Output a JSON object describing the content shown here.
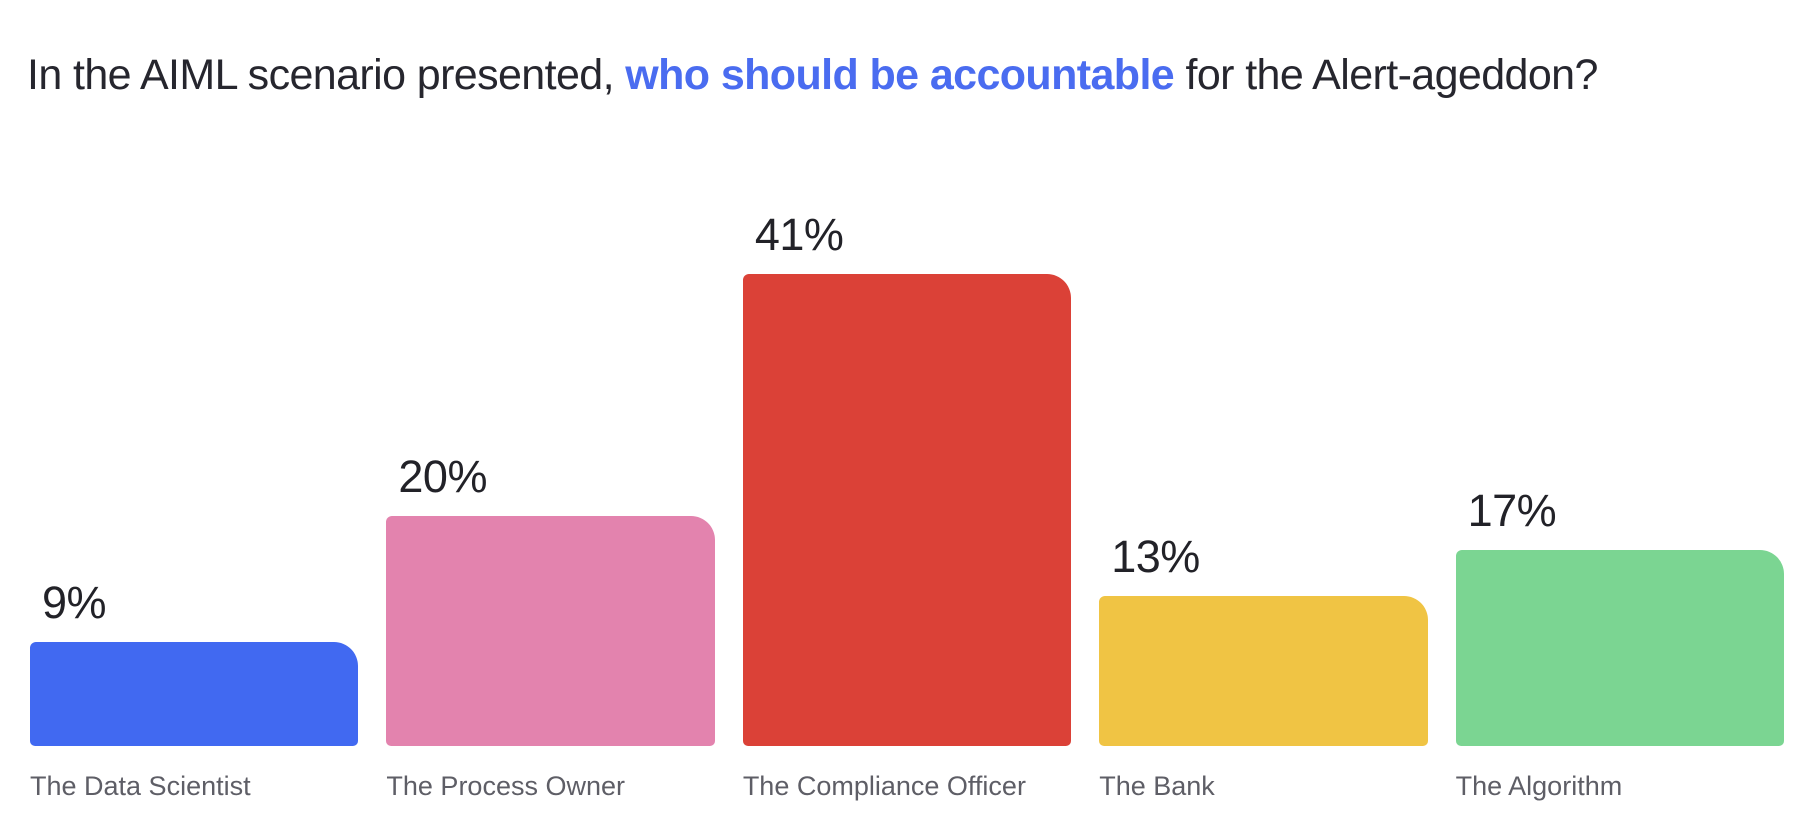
{
  "page": {
    "background": "#ffffff"
  },
  "title": {
    "prefix": "In the AIML scenario presented, ",
    "highlight": "who should be accountable",
    "suffix": " for the Alert-ageddon?",
    "text_color": "#26262e",
    "highlight_color": "#4a6cf0"
  },
  "chart_data": {
    "type": "bar",
    "title": "In the AIML scenario presented, who should be accountable for the Alert-ageddon?",
    "categories": [
      "The Data Scientist",
      "The Process Owner",
      "The Compliance Officer",
      "The Bank",
      "The Algorithm"
    ],
    "values": [
      9,
      20,
      41,
      13,
      17
    ],
    "value_labels": [
      "9%",
      "20%",
      "41%",
      "13%",
      "17%"
    ],
    "unit": "%",
    "bar_colors": [
      "#4169f1",
      "#e383ae",
      "#db4137",
      "#f0c444",
      "#7bd592"
    ],
    "value_label_color": "#222228",
    "category_label_color": "#5e5e66",
    "ylim": [
      0,
      45
    ],
    "grid": false,
    "legend": false,
    "orientation": "vertical",
    "value_label_position": "above-bar-left",
    "category_label_position": "below-bar-left"
  }
}
